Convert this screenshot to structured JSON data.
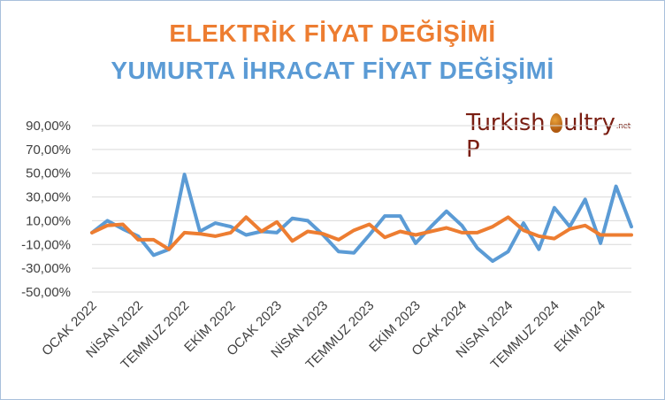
{
  "title_line1": "ELEKTRİK FİYAT DEĞİŞİMİ",
  "title_line2": "YUMURTA İHRACAT FİYAT DEĞİŞİMİ",
  "logo": {
    "text_before": "Turkish P",
    "text_after": "ultry",
    "suffix": ".net",
    "color": "#7a1e12"
  },
  "colors": {
    "title1": "#ed7d31",
    "title2": "#5b9bd5",
    "grid": "#d9d9d9",
    "axis_text": "#404040"
  },
  "chart_data": {
    "type": "line",
    "ylim": [
      -50,
      90
    ],
    "yticks": [
      90,
      70,
      50,
      30,
      10,
      -10,
      -30,
      -50
    ],
    "ytick_labels": [
      "90,00%",
      "70,00%",
      "50,00%",
      "30,00%",
      "10,00%",
      "-10,00%",
      "-30,00%",
      "-50,00%"
    ],
    "x": [
      "OCAK 2022",
      "ŞUBAT 2022",
      "MART 2022",
      "NİSAN 2022",
      "MAYIS 2022",
      "HAZİRAN 2022",
      "TEMMUZ 2022",
      "AĞUSTOS 2022",
      "EYLÜL 2022",
      "EKİM 2022",
      "KASIM 2022",
      "ARALIK 2022",
      "OCAK 2023",
      "ŞUBAT 2023",
      "MART 2023",
      "NİSAN 2023",
      "MAYIS 2023",
      "HAZİRAN 2023",
      "TEMMUZ 2023",
      "AĞUSTOS 2023",
      "EYLÜL 2023",
      "EKİM 2023",
      "KASIM 2023",
      "ARALIK 2023",
      "OCAK 2024",
      "ŞUBAT 2024",
      "MART 2024",
      "NİSAN 2024",
      "MAYIS 2024",
      "HAZİRAN 2024",
      "TEMMUZ 2024",
      "AĞUSTOS 2024",
      "EYLÜL 2024",
      "EKİM 2024",
      "KASIM 2024",
      "ARALIK 2024"
    ],
    "x_tick_labels": [
      {
        "index": 0,
        "label": "OCAK 2022"
      },
      {
        "index": 3,
        "label": "NİSAN 2022"
      },
      {
        "index": 6,
        "label": "TEMMUZ 2022"
      },
      {
        "index": 9,
        "label": "EKİM 2022"
      },
      {
        "index": 12,
        "label": "OCAK 2023"
      },
      {
        "index": 15,
        "label": "NİSAN 2023"
      },
      {
        "index": 18,
        "label": "TEMMUZ 2023"
      },
      {
        "index": 21,
        "label": "EKİM 2023"
      },
      {
        "index": 24,
        "label": "OCAK 2024"
      },
      {
        "index": 27,
        "label": "NİSAN 2024"
      },
      {
        "index": 30,
        "label": "TEMMUZ 2024"
      },
      {
        "index": 33,
        "label": "EKİM 2024"
      }
    ],
    "grid": true,
    "legend": "none",
    "series": [
      {
        "color": "#5b9bd5",
        "values": [
          0,
          10,
          3,
          -3,
          -19,
          -14,
          49,
          1,
          8,
          5,
          -2,
          1,
          0,
          12,
          10,
          -2,
          -16,
          -17,
          -2,
          14,
          14,
          -9,
          5,
          18,
          6,
          -13,
          -24,
          -16,
          8,
          -14,
          21,
          5,
          28,
          -9,
          39,
          5
        ]
      },
      {
        "color": "#ed7d31",
        "values": [
          0,
          6,
          7,
          -6,
          -6,
          -14,
          0,
          -1,
          -3,
          0,
          13,
          1,
          9,
          -7,
          1,
          -1,
          -6,
          2,
          7,
          -4,
          1,
          -2,
          1,
          4,
          0,
          0,
          5,
          13,
          2,
          -3,
          -5,
          3,
          6,
          -2,
          -2,
          -2
        ]
      }
    ]
  }
}
